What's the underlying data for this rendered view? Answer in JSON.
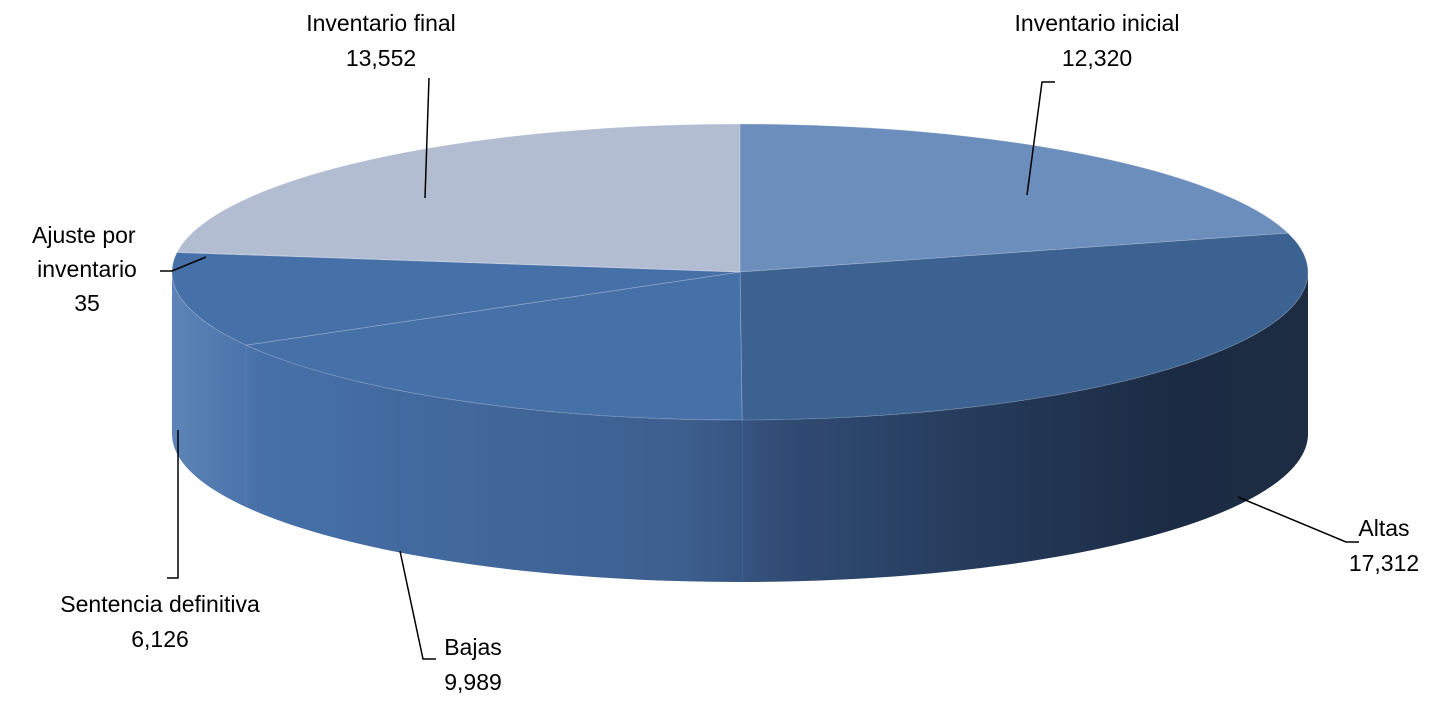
{
  "chart_data": {
    "type": "pie",
    "title": "",
    "style": "3d",
    "colors": {
      "Inventario inicial": "#6B8EBC",
      "Altas": "#3C6291",
      "Bajas": "#4670A8",
      "Sentencia definitiva": "#4670A8",
      "Ajuste por inventario": "#6A88B5",
      "Inventario final": "#B3BDD1",
      "side_dark": "#1D2C43",
      "side_mid": "#35547F",
      "side_light": "#4670A8"
    },
    "slices": [
      {
        "label": "Inventario inicial",
        "value": 12320,
        "value_text": "12,320"
      },
      {
        "label": "Altas",
        "value": 17312,
        "value_text": "17,312"
      },
      {
        "label": "Bajas",
        "value": 9989,
        "value_text": "9,989"
      },
      {
        "label": "Sentencia definitiva",
        "value": 6126,
        "value_text": "6,126"
      },
      {
        "label": "Ajuste por inventario",
        "value": 35,
        "value_text": "35"
      },
      {
        "label": "Inventario final",
        "value": 13552,
        "value_text": "13,552"
      }
    ]
  }
}
